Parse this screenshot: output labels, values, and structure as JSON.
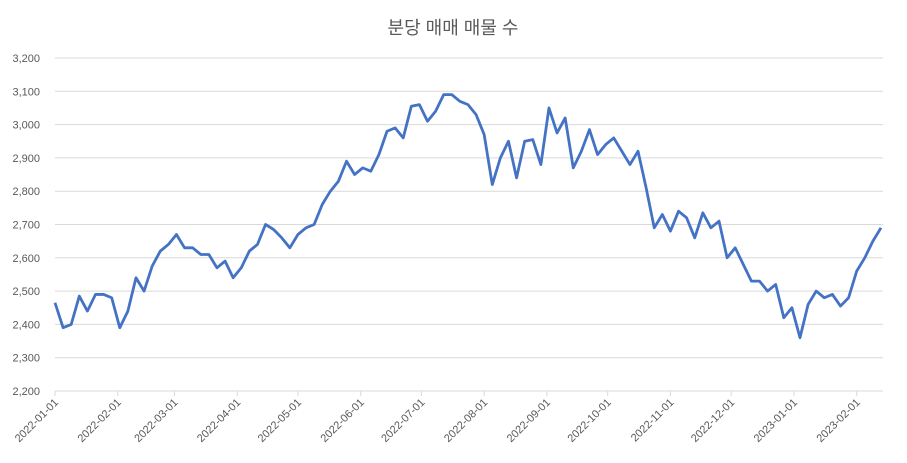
{
  "chart_data": {
    "type": "line",
    "title": "분당 매매 매물 수",
    "x": [
      "2022-01-01",
      "2022-01-05",
      "2022-01-09",
      "2022-01-13",
      "2022-01-17",
      "2022-01-21",
      "2022-01-25",
      "2022-01-29",
      "2022-02-02",
      "2022-02-06",
      "2022-02-10",
      "2022-02-14",
      "2022-02-18",
      "2022-02-22",
      "2022-02-26",
      "2022-03-02",
      "2022-03-06",
      "2022-03-10",
      "2022-03-14",
      "2022-03-18",
      "2022-03-22",
      "2022-03-26",
      "2022-03-30",
      "2022-04-03",
      "2022-04-07",
      "2022-04-11",
      "2022-04-15",
      "2022-04-19",
      "2022-04-23",
      "2022-04-27",
      "2022-05-01",
      "2022-05-05",
      "2022-05-09",
      "2022-05-13",
      "2022-05-17",
      "2022-05-21",
      "2022-05-25",
      "2022-05-29",
      "2022-06-02",
      "2022-06-06",
      "2022-06-10",
      "2022-06-14",
      "2022-06-18",
      "2022-06-22",
      "2022-06-26",
      "2022-06-30",
      "2022-07-04",
      "2022-07-08",
      "2022-07-12",
      "2022-07-16",
      "2022-07-20",
      "2022-07-24",
      "2022-07-28",
      "2022-08-01",
      "2022-08-05",
      "2022-08-09",
      "2022-08-13",
      "2022-08-17",
      "2022-08-21",
      "2022-08-25",
      "2022-08-29",
      "2022-09-02",
      "2022-09-06",
      "2022-09-10",
      "2022-09-14",
      "2022-09-18",
      "2022-09-22",
      "2022-09-26",
      "2022-09-30",
      "2022-10-04",
      "2022-10-08",
      "2022-10-12",
      "2022-10-16",
      "2022-10-20",
      "2022-10-24",
      "2022-10-28",
      "2022-11-01",
      "2022-11-05",
      "2022-11-09",
      "2022-11-13",
      "2022-11-17",
      "2022-11-21",
      "2022-11-25",
      "2022-11-29",
      "2022-12-03",
      "2022-12-07",
      "2022-12-11",
      "2022-12-15",
      "2022-12-19",
      "2022-12-23",
      "2022-12-27",
      "2022-12-31",
      "2023-01-04",
      "2023-01-08",
      "2023-01-12",
      "2023-01-16",
      "2023-01-20",
      "2023-01-24",
      "2023-01-28",
      "2023-02-01",
      "2023-02-05",
      "2023-02-09",
      "2023-02-13"
    ],
    "series": [
      {
        "color": "#4472c4",
        "values": [
          2465,
          2390,
          2400,
          2485,
          2440,
          2490,
          2490,
          2480,
          2390,
          2440,
          2540,
          2500,
          2575,
          2620,
          2640,
          2670,
          2630,
          2630,
          2610,
          2610,
          2570,
          2590,
          2540,
          2570,
          2620,
          2640,
          2700,
          2685,
          2660,
          2630,
          2670,
          2690,
          2700,
          2760,
          2800,
          2830,
          2890,
          2850,
          2870,
          2860,
          2910,
          2980,
          2990,
          2960,
          3055,
          3060,
          3010,
          3040,
          3090,
          3090,
          3070,
          3060,
          3030,
          2970,
          2820,
          2900,
          2950,
          2840,
          2950,
          2955,
          2880,
          3050,
          2975,
          3020,
          2870,
          2920,
          2985,
          2910,
          2940,
          2960,
          2920,
          2880,
          2920,
          2810,
          2690,
          2730,
          2680,
          2740,
          2720,
          2660,
          2735,
          2690,
          2710,
          2600,
          2630,
          2580,
          2530,
          2530,
          2500,
          2520,
          2420,
          2450,
          2360,
          2460,
          2500,
          2480,
          2490,
          2455,
          2480,
          2560,
          2600,
          2650,
          2690
        ]
      }
    ],
    "xlim": [
      "2022-01-01",
      "2023-02-14"
    ],
    "xticks": [
      "2022-01-01",
      "2022-02-01",
      "2022-03-01",
      "2022-04-01",
      "2022-05-01",
      "2022-06-01",
      "2022-07-01",
      "2022-08-01",
      "2022-09-01",
      "2022-10-01",
      "2022-11-01",
      "2022-12-01",
      "2023-01-01",
      "2023-02-01"
    ],
    "ylim": [
      2200,
      3200
    ],
    "yticks": [
      {
        "value": 2200,
        "label": "2,200"
      },
      {
        "value": 2300,
        "label": "2,300"
      },
      {
        "value": 2400,
        "label": "2,400"
      },
      {
        "value": 2500,
        "label": "2,500"
      },
      {
        "value": 2600,
        "label": "2,600"
      },
      {
        "value": 2700,
        "label": "2,700"
      },
      {
        "value": 2800,
        "label": "2,800"
      },
      {
        "value": 2900,
        "label": "2,900"
      },
      {
        "value": 3000,
        "label": "3,000"
      },
      {
        "value": 3100,
        "label": "3,100"
      },
      {
        "value": 3200,
        "label": "3,200"
      }
    ],
    "grid": true
  }
}
